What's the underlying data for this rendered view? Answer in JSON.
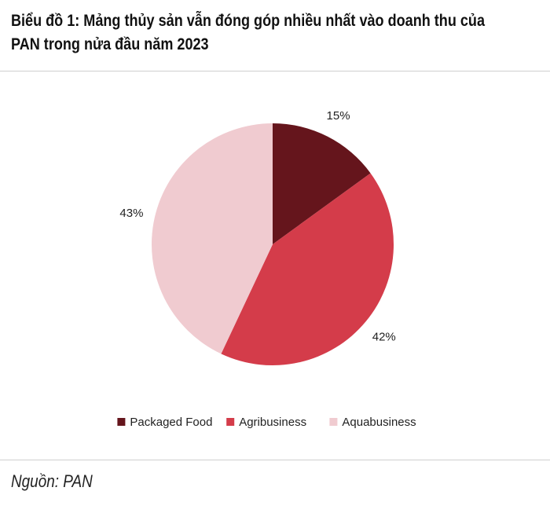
{
  "header": {
    "title_line1": "Biểu đồ 1: Mảng thủy sản vẫn đóng góp nhiều nhất vào doanh thu của",
    "title_line2": "PAN trong nửa đầu năm 2023"
  },
  "chart_data": {
    "type": "pie",
    "title": "Biểu đồ 1: Mảng thủy sản vẫn đóng góp nhiều nhất vào doanh thu của PAN trong nửa đầu năm 2023",
    "categories": [
      "Packaged Food",
      "Agribusiness",
      "Aquabusiness"
    ],
    "values": [
      15,
      42,
      43
    ],
    "labels": [
      "15%",
      "42%",
      "43%"
    ],
    "unit": "%",
    "colors": [
      "#65151c",
      "#d43c4a",
      "#f0cbd0"
    ],
    "legend": "bottom",
    "start": "top, clockwise"
  },
  "footer": {
    "source": "Nguồn: PAN"
  }
}
